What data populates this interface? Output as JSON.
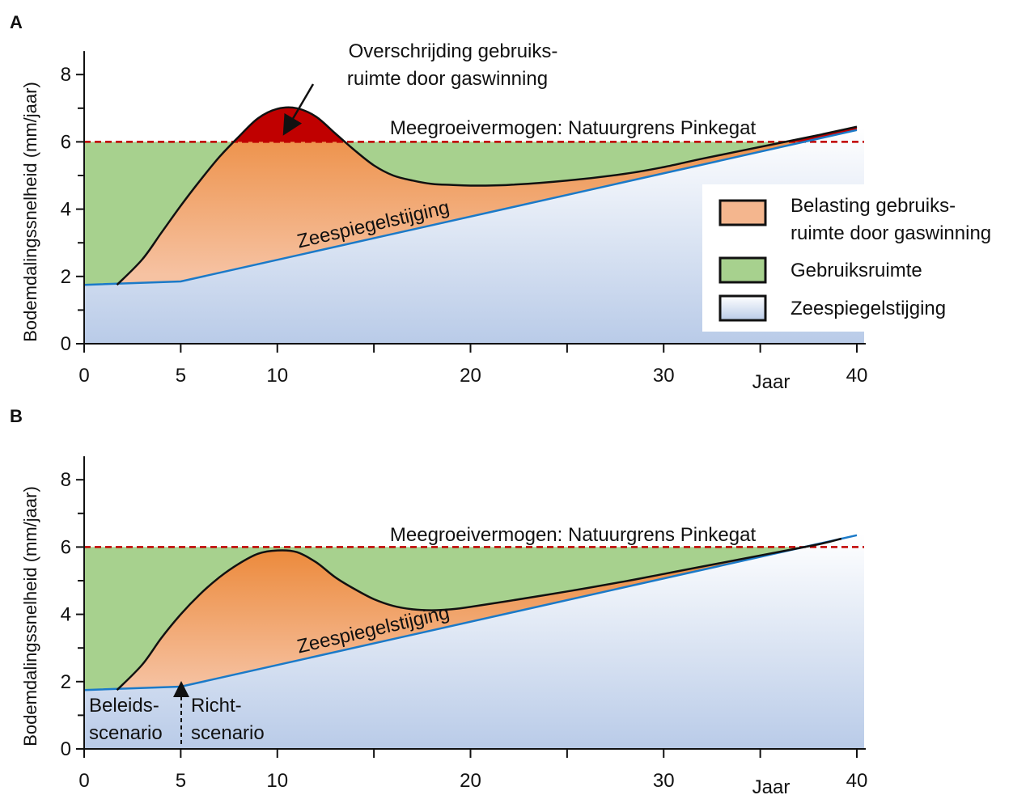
{
  "chart_data": [
    {
      "panel": "A",
      "type": "area",
      "ylabel": "Bodemdalingssnelheid (mm/jaar)",
      "xlabel": "Jaar",
      "xlim": [
        0,
        40
      ],
      "ylim": [
        0,
        8
      ],
      "x_tick_labels": [
        "0",
        "5",
        "10",
        "20",
        "30",
        "40"
      ],
      "x_tick_label_values": [
        0,
        5,
        10,
        20,
        30,
        40
      ],
      "x_minor_ticks": [
        15,
        25,
        35
      ],
      "y_ticks": [
        0,
        2,
        4,
        6,
        8
      ],
      "y_minor_ticks": [
        1,
        3,
        5,
        7
      ],
      "series": [
        {
          "name": "Zeespiegelstijging",
          "x": [
            0,
            5,
            40
          ],
          "y": [
            1.75,
            1.85,
            6.35
          ]
        },
        {
          "name": "Belasting gebruiksruimte door gaswinning",
          "x": [
            1.7,
            3,
            4,
            5,
            6,
            7,
            8,
            9,
            10,
            11,
            12,
            13,
            14,
            15,
            16,
            17,
            18,
            19,
            20,
            22,
            25,
            28,
            30,
            32,
            35,
            38,
            40
          ],
          "y": [
            1.75,
            2.5,
            3.3,
            4.1,
            4.85,
            5.55,
            6.15,
            6.7,
            6.98,
            7.0,
            6.75,
            6.25,
            5.75,
            5.3,
            5.0,
            4.85,
            4.75,
            4.72,
            4.7,
            4.72,
            4.85,
            5.05,
            5.25,
            5.5,
            5.85,
            6.2,
            6.45
          ]
        },
        {
          "name": "Gebruiksruimte",
          "threshold": 6
        }
      ],
      "threshold": {
        "value": 6,
        "label": "Meegroeivermogen: Natuurgrens Pinkegat"
      },
      "annotations": [
        {
          "text": "Overschrijding gebruiks-",
          "text2": "ruimte door gaswinning"
        },
        {
          "text": "Zeespiegelstijging"
        }
      ],
      "legend": {
        "placement": "right",
        "items": [
          {
            "line1": "Belasting gebruiks-",
            "line2": "ruimte door gaswinning",
            "color": "#f4b68e"
          },
          {
            "line1": "Gebruiksruimte",
            "line2": "",
            "color": "#a7d18e"
          },
          {
            "line1": "Zeespiegelstijging",
            "line2": "",
            "color": "#c2d2ea"
          }
        ]
      },
      "colors": {
        "exceedance": "#c00000",
        "usage": "#a7d18e",
        "load_top": "#ec8a3c",
        "load_bottom": "#f6c2a2",
        "sea_top": "#ffffff",
        "sea_bottom": "#b9cbe8",
        "sea_line": "#1b7ac8",
        "threshold_line": "#c00000"
      }
    },
    {
      "panel": "B",
      "type": "area",
      "ylabel": "Bodemdalingssnelheid (mm/jaar)",
      "xlabel": "Jaar",
      "xlim": [
        0,
        40
      ],
      "ylim": [
        0,
        8
      ],
      "x_tick_labels": [
        "0",
        "5",
        "10",
        "20",
        "30",
        "40"
      ],
      "x_tick_label_values": [
        0,
        5,
        10,
        20,
        30,
        40
      ],
      "x_minor_ticks": [
        15,
        25,
        35
      ],
      "y_ticks": [
        0,
        2,
        4,
        6,
        8
      ],
      "y_minor_ticks": [
        1,
        3,
        5,
        7
      ],
      "series": [
        {
          "name": "Zeespiegelstijging",
          "x": [
            0,
            5,
            40
          ],
          "y": [
            1.75,
            1.85,
            6.35
          ]
        },
        {
          "name": "Belasting gebruiksruimte door gaswinning",
          "x": [
            1.7,
            3,
            4,
            5,
            6,
            7,
            8,
            9,
            10,
            11,
            12,
            13,
            14,
            15,
            16,
            17,
            18,
            19,
            20,
            22,
            25,
            28,
            30,
            32,
            35,
            38,
            39.2
          ],
          "y": [
            1.75,
            2.5,
            3.3,
            4.0,
            4.6,
            5.1,
            5.5,
            5.8,
            5.9,
            5.85,
            5.55,
            5.1,
            4.75,
            4.45,
            4.25,
            4.15,
            4.12,
            4.15,
            4.22,
            4.4,
            4.68,
            4.98,
            5.2,
            5.42,
            5.75,
            6.08,
            6.25
          ]
        },
        {
          "name": "Gebruiksruimte",
          "threshold": 6
        }
      ],
      "threshold": {
        "value": 6,
        "label": "Meegroeivermogen: Natuurgrens Pinkegat"
      },
      "annotations": [
        {
          "text": "Zeespiegelstijging"
        },
        {
          "text": "Beleids-",
          "text2": "scenario"
        },
        {
          "text": "Richt-",
          "text2": "scenario"
        }
      ],
      "divider_x": 5,
      "colors": {
        "usage": "#a7d18e",
        "load_top": "#ec8a3c",
        "load_bottom": "#f6c2a2",
        "sea_top": "#ffffff",
        "sea_bottom": "#b9cbe8",
        "sea_line": "#1b7ac8",
        "threshold_line": "#c00000"
      }
    }
  ]
}
